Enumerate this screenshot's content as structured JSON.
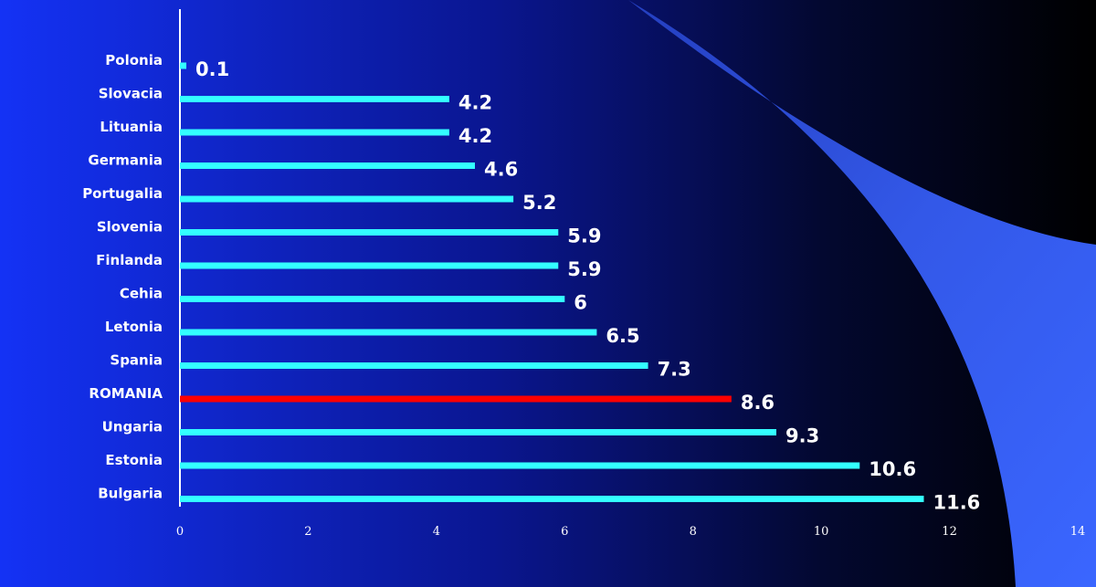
{
  "chart_data": {
    "type": "bar",
    "orientation": "horizontal",
    "categories": [
      "Polonia",
      "Slovacia",
      "Lituania",
      "Germania",
      "Portugalia",
      "Slovenia",
      "Finlanda",
      "Cehia",
      "Letonia",
      "Spania",
      "ROMANIA",
      "Ungaria",
      "Estonia",
      "Bulgaria"
    ],
    "values": [
      0.1,
      4.2,
      4.2,
      4.6,
      5.2,
      5.9,
      5.9,
      6,
      6.5,
      7.3,
      8.6,
      9.3,
      10.6,
      11.6
    ],
    "colors": [
      "#33ffff",
      "#33ffff",
      "#33ffff",
      "#33ffff",
      "#33ffff",
      "#33ffff",
      "#33ffff",
      "#33ffff",
      "#33ffff",
      "#33ffff",
      "#ff0000",
      "#33ffff",
      "#33ffff",
      "#33ffff"
    ],
    "xlim": [
      0,
      14
    ],
    "xticks": [
      0,
      2,
      4,
      6,
      8,
      10,
      12,
      14
    ]
  }
}
